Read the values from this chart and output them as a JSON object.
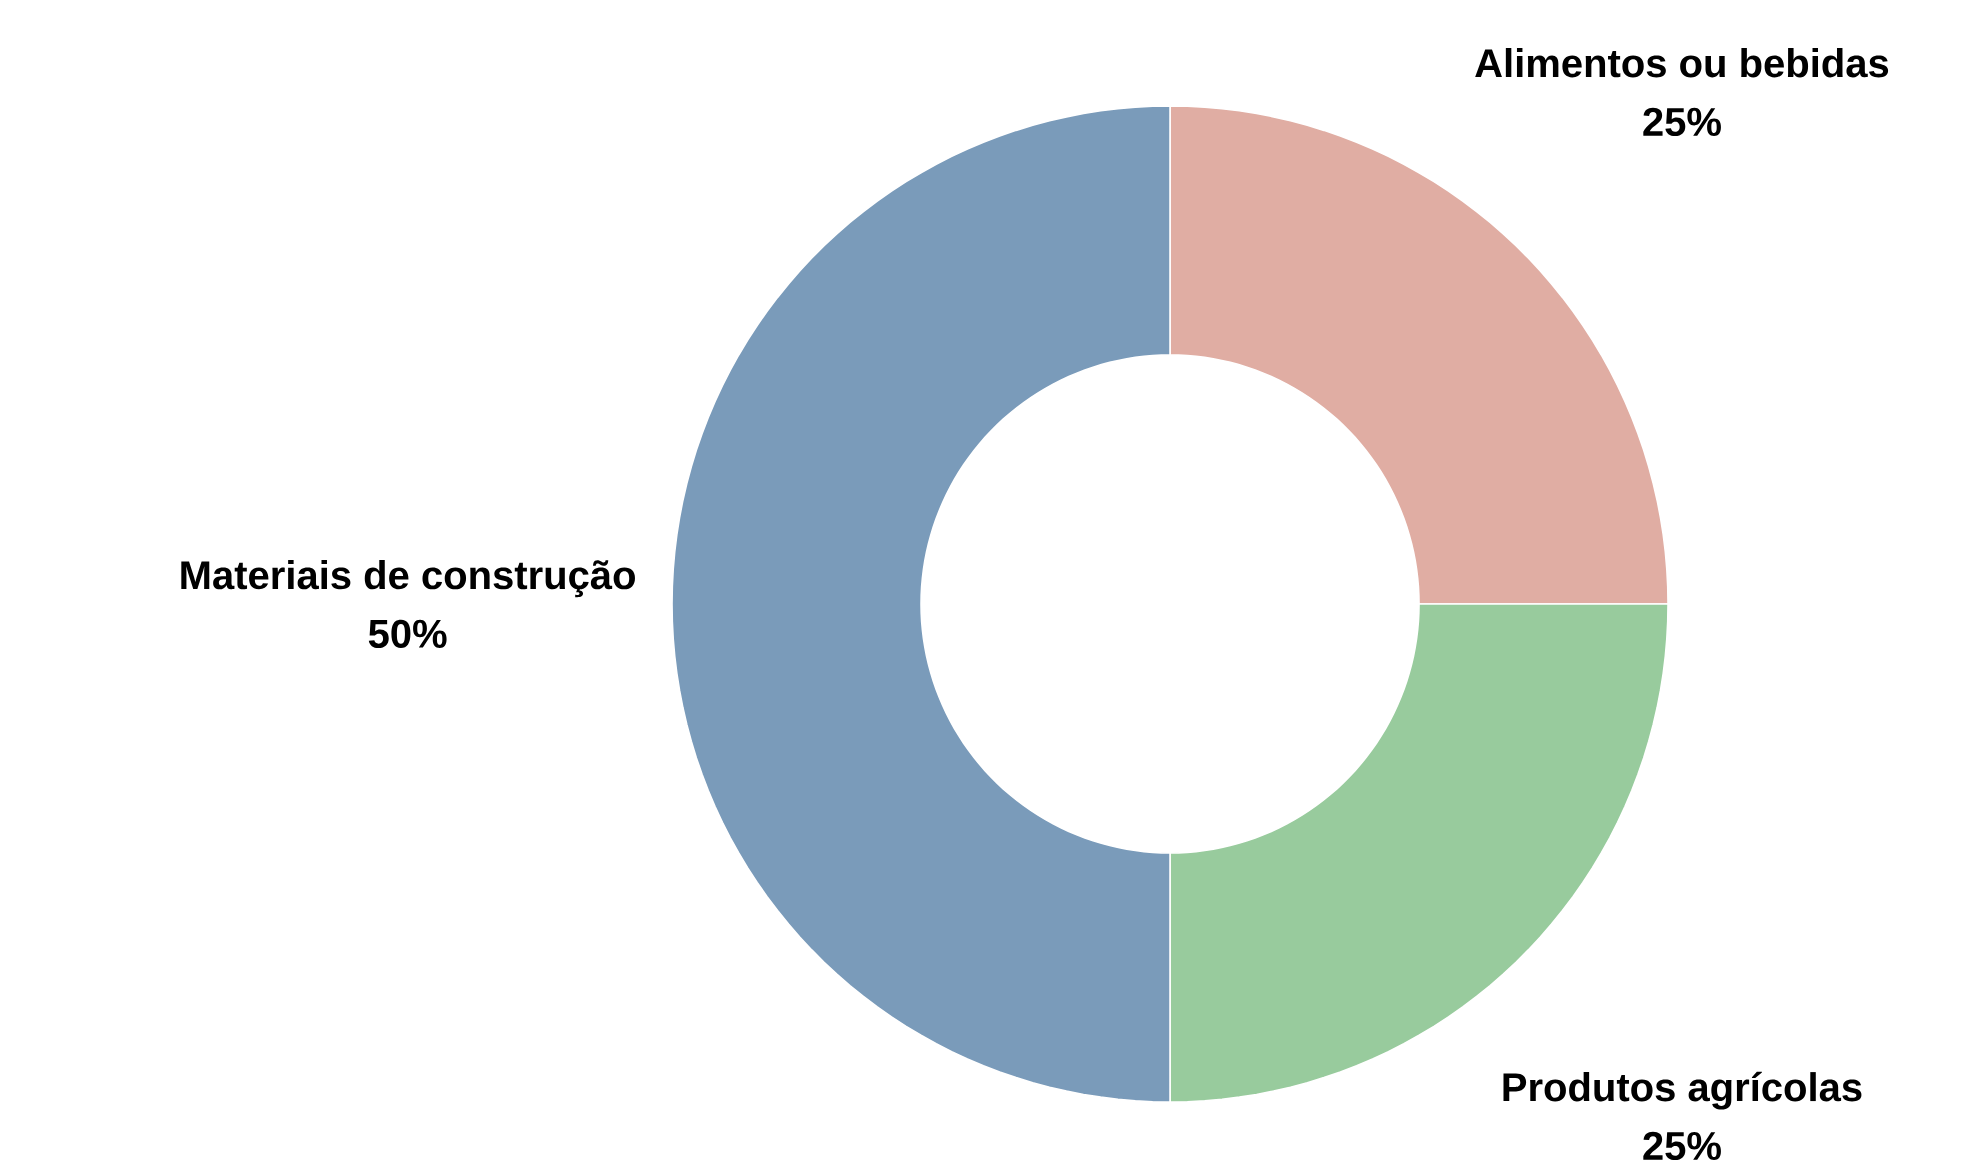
{
  "chart_data": {
    "type": "donut",
    "categories": [
      "Alimentos ou bebidas",
      "Produtos agrícolas",
      "Materiais de construção"
    ],
    "values": [
      25,
      25,
      50
    ],
    "colors": [
      "#e0ada3",
      "#98cb9d",
      "#7a9bba"
    ],
    "value_labels": [
      "25%",
      "25%",
      "50%"
    ]
  }
}
